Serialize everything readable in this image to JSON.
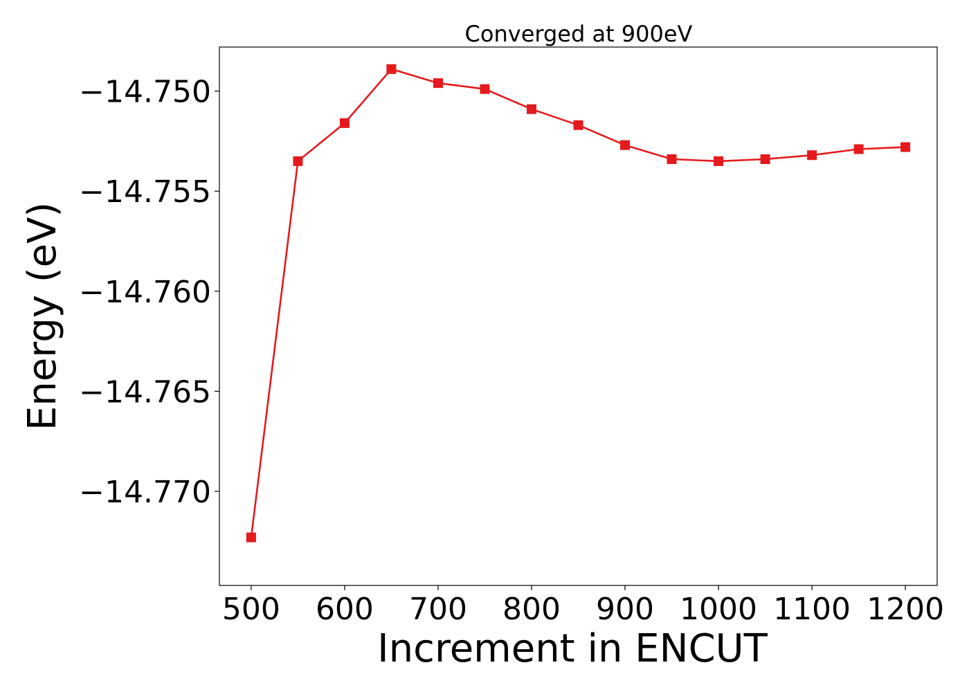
{
  "chart_data": {
    "type": "line",
    "title": "Converged at 900eV",
    "xlabel": "Increment in ENCUT",
    "ylabel": "Energy (eV)",
    "x": [
      500,
      550,
      600,
      650,
      700,
      750,
      800,
      850,
      900,
      950,
      1000,
      1050,
      1100,
      1150,
      1200
    ],
    "series": [
      {
        "values": [
          -14.7723,
          -14.7535,
          -14.7516,
          -14.7489,
          -14.7496,
          -14.7499,
          -14.7509,
          -14.7517,
          -14.7527,
          -14.7534,
          -14.7535,
          -14.7534,
          -14.7532,
          -14.7529,
          -14.7528
        ],
        "color": "#e41a1c",
        "marker": "square"
      }
    ],
    "xlim": [
      466,
      1234
    ],
    "ylim": [
      -14.7747,
      -14.7478
    ],
    "xticks": [
      500,
      600,
      700,
      800,
      900,
      1000,
      1100,
      1200
    ],
    "xtick_labels": [
      "500",
      "600",
      "700",
      "800",
      "900",
      "1000",
      "1100",
      "1200"
    ],
    "yticks": [
      -14.77,
      -14.765,
      -14.76,
      -14.755,
      -14.75
    ],
    "ytick_labels": [
      "−14.770",
      "−14.765",
      "−14.760",
      "−14.755",
      "−14.750"
    ],
    "grid": false,
    "legend": "none"
  }
}
